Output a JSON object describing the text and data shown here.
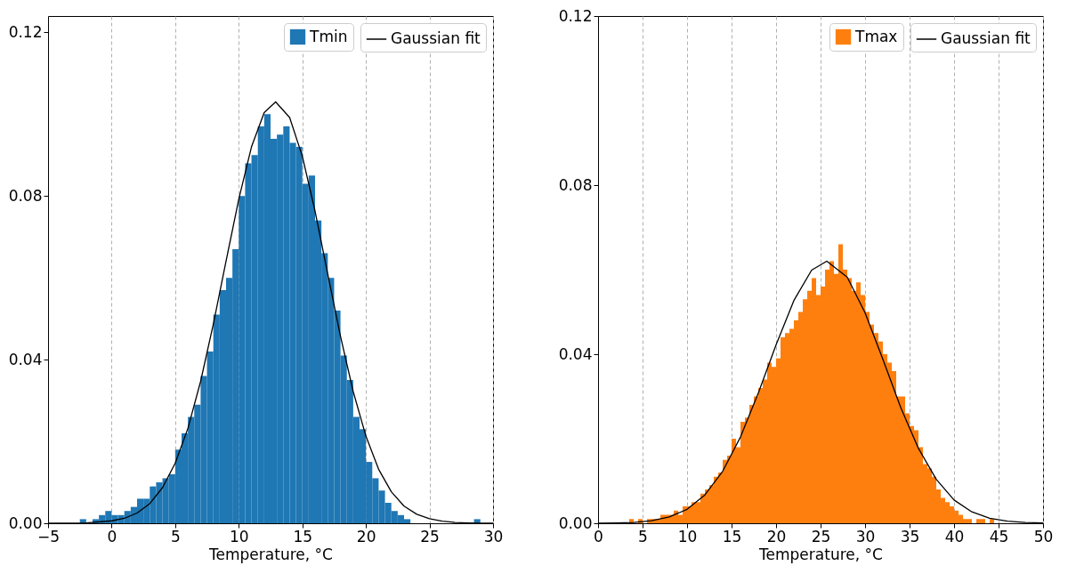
{
  "chart_data": [
    {
      "type": "histogram",
      "xlabel": "Temperature, °C",
      "legend": "top right",
      "grid": "x",
      "xlim": [
        -5,
        30
      ],
      "xticks": [
        {
          "value": -5,
          "label": "−5"
        },
        0,
        5,
        10,
        15,
        20,
        25,
        30
      ],
      "ylim": [
        0,
        0.124
      ],
      "yticks": [
        {
          "value": 0,
          "label": "0.00"
        },
        {
          "value": 0.04,
          "label": "0.04"
        },
        {
          "value": 0.08,
          "label": "0.08"
        },
        {
          "value": 0.12,
          "label": "0.12"
        }
      ],
      "bins": [
        -2.5,
        -2,
        -1.5,
        -1,
        -0.5,
        0,
        0.5,
        1,
        1.5,
        2,
        2.5,
        3,
        3.5,
        4,
        4.5,
        5,
        5.5,
        6,
        6.5,
        7,
        7.5,
        8,
        8.5,
        9,
        9.5,
        10,
        10.5,
        11,
        11.5,
        12,
        12.5,
        13,
        13.5,
        14,
        14.5,
        15,
        15.5,
        16,
        16.5,
        17,
        17.5,
        18,
        18.5,
        19,
        19.5,
        20,
        20.5,
        21,
        21.5,
        22,
        22.5,
        23,
        23.5,
        24,
        24.5,
        25,
        25.5,
        26,
        26.5,
        27,
        27.5,
        28,
        28.5,
        29
      ],
      "series": [
        {
          "name": "Tmin",
          "color": "#1f77b4",
          "values": [
            0.001,
            0,
            0.001,
            0.002,
            0.003,
            0.002,
            0.002,
            0.003,
            0.004,
            0.006,
            0.006,
            0.009,
            0.01,
            0.011,
            0.012,
            0.018,
            0.022,
            0.026,
            0.029,
            0.036,
            0.042,
            0.051,
            0.057,
            0.06,
            0.067,
            0.08,
            0.088,
            0.09,
            0.097,
            0.1,
            0.094,
            0.095,
            0.097,
            0.093,
            0.092,
            0.083,
            0.085,
            0.074,
            0.066,
            0.06,
            0.052,
            0.041,
            0.035,
            0.026,
            0.023,
            0.015,
            0.011,
            0.008,
            0.005,
            0.003,
            0.002,
            0.001,
            0,
            0,
            0,
            0,
            0,
            0,
            0,
            0,
            0,
            0,
            0.001
          ]
        },
        {
          "name": "Gaussian fit",
          "type": "line",
          "color": "#000000",
          "x": [
            -5,
            -2,
            0,
            1,
            2,
            3,
            4,
            5,
            6,
            7,
            8,
            9,
            10,
            11,
            12,
            12.9,
            14,
            15,
            16,
            17,
            18,
            19,
            20,
            21,
            22,
            23,
            24,
            25,
            26,
            27,
            28,
            29,
            30
          ],
          "values": [
            0,
            0.0001,
            0.0006,
            0.0012,
            0.0025,
            0.0048,
            0.0087,
            0.0147,
            0.0232,
            0.0347,
            0.0487,
            0.0641,
            0.0792,
            0.092,
            0.1004,
            0.103,
            0.0992,
            0.0897,
            0.0763,
            0.0609,
            0.0457,
            0.0322,
            0.0213,
            0.0132,
            0.0077,
            0.0042,
            0.0022,
            0.0011,
            0.0005,
            0.0002,
            0.0001,
            0,
            0
          ]
        }
      ]
    },
    {
      "type": "histogram",
      "xlabel": "Temperature, °C",
      "legend": "top right",
      "grid": "x",
      "xlim": [
        0,
        50
      ],
      "xticks": [
        0,
        5,
        10,
        15,
        20,
        25,
        30,
        35,
        40,
        45,
        50
      ],
      "ylim": [
        0,
        0.12
      ],
      "yticks": [
        {
          "value": 0,
          "label": "0.00"
        },
        {
          "value": 0.04,
          "label": "0.04"
        },
        {
          "value": 0.08,
          "label": "0.08"
        },
        {
          "value": 0.12,
          "label": "0.12"
        }
      ],
      "bins": [
        3.5,
        4,
        4.5,
        5,
        5.5,
        6,
        6.5,
        7,
        7.5,
        8,
        8.5,
        9,
        9.5,
        10,
        10.5,
        11,
        11.5,
        12,
        12.5,
        13,
        13.5,
        14,
        14.5,
        15,
        15.5,
        16,
        16.5,
        17,
        17.5,
        18,
        18.5,
        19,
        19.5,
        20,
        20.5,
        21,
        21.5,
        22,
        22.5,
        23,
        23.5,
        24,
        24.5,
        25,
        25.5,
        26,
        26.5,
        27,
        27.5,
        28,
        28.5,
        29,
        29.5,
        30,
        30.5,
        31,
        31.5,
        32,
        32.5,
        33,
        33.5,
        34,
        34.5,
        35,
        35.5,
        36,
        36.5,
        37,
        37.5,
        38,
        38.5,
        39,
        39.5,
        40,
        40.5,
        41,
        41.5,
        42,
        42.5,
        43,
        43.5,
        44,
        44.5,
        45
      ],
      "series": [
        {
          "name": "Tmax",
          "color": "#ff7f0e",
          "values": [
            0.001,
            0,
            0.001,
            0,
            0.001,
            0.001,
            0.001,
            0.002,
            0.002,
            0.002,
            0.003,
            0.002,
            0.004,
            0.004,
            0.005,
            0.005,
            0.007,
            0.008,
            0.009,
            0.011,
            0.012,
            0.015,
            0.016,
            0.02,
            0.018,
            0.024,
            0.025,
            0.028,
            0.03,
            0.032,
            0.034,
            0.038,
            0.037,
            0.039,
            0.044,
            0.045,
            0.046,
            0.048,
            0.05,
            0.053,
            0.055,
            0.058,
            0.054,
            0.056,
            0.06,
            0.062,
            0.059,
            0.066,
            0.06,
            0.058,
            0.055,
            0.057,
            0.054,
            0.05,
            0.047,
            0.045,
            0.043,
            0.04,
            0.038,
            0.036,
            0.03,
            0.03,
            0.026,
            0.023,
            0.022,
            0.018,
            0.014,
            0.013,
            0.011,
            0.008,
            0.006,
            0.005,
            0.004,
            0.003,
            0.002,
            0.001,
            0.001,
            0,
            0.001,
            0.001,
            0,
            0.001,
            0
          ]
        },
        {
          "name": "Gaussian fit",
          "type": "line",
          "color": "#000000",
          "x": [
            0,
            2,
            4,
            6,
            8,
            10,
            12,
            14,
            16,
            18,
            20,
            22,
            24,
            25.7,
            28,
            30,
            32,
            34,
            36,
            38,
            40,
            42,
            44,
            46,
            48,
            50
          ],
          "values": [
            0,
            0.0001,
            0.0002,
            0.0006,
            0.0015,
            0.0033,
            0.0067,
            0.0123,
            0.0204,
            0.0308,
            0.0422,
            0.0527,
            0.0599,
            0.062,
            0.0582,
            0.0498,
            0.0388,
            0.0274,
            0.0177,
            0.0104,
            0.0055,
            0.0027,
            0.0012,
            0.0005,
            0.0002,
            0.0001
          ]
        }
      ]
    }
  ]
}
